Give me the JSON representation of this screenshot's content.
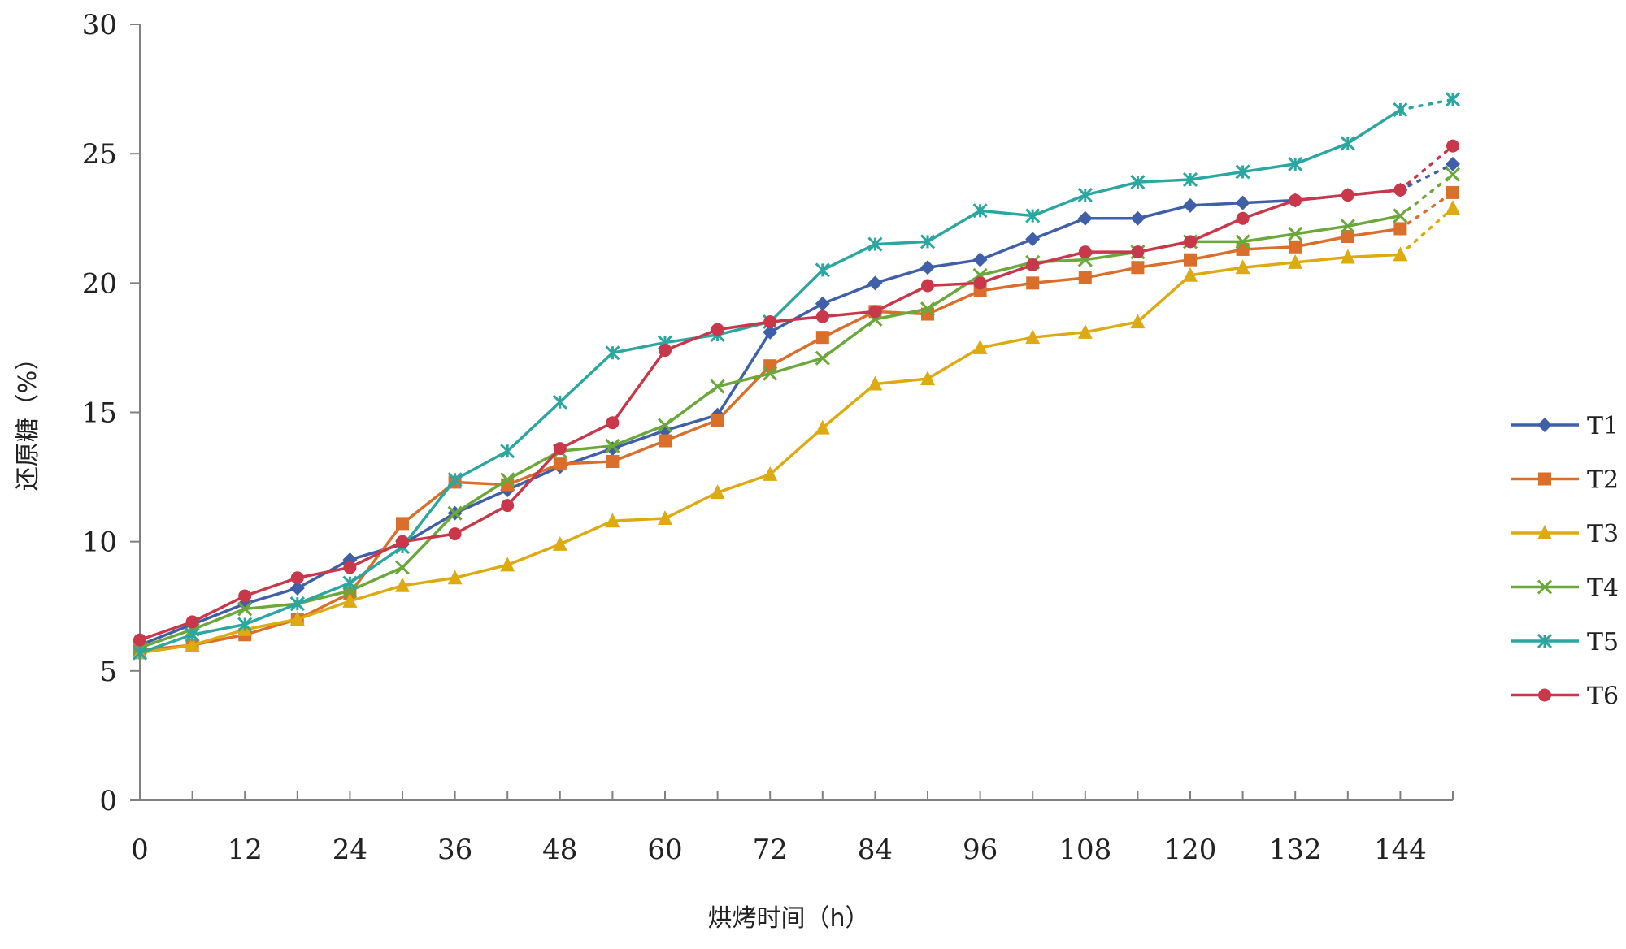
{
  "chart_data": {
    "type": "line",
    "xlabel": "烘烤时间（h）",
    "ylabel": "还原糖（%）",
    "ylim": [
      0,
      30
    ],
    "yticks": [
      0,
      5,
      10,
      15,
      20,
      25,
      30
    ],
    "xlim": [
      0,
      150
    ],
    "xticks": [
      0,
      12,
      24,
      36,
      48,
      60,
      72,
      84,
      96,
      108,
      120,
      132,
      144
    ],
    "x": [
      0,
      6,
      12,
      18,
      24,
      30,
      36,
      42,
      48,
      54,
      60,
      66,
      72,
      78,
      84,
      90,
      96,
      102,
      108,
      114,
      120,
      126,
      132,
      138,
      144
    ],
    "x_extra": 150,
    "grid": false,
    "legend_position": "right",
    "series": [
      {
        "name": "T1",
        "color": "#3F5FA8",
        "marker": "diamond",
        "values": [
          6.0,
          6.8,
          7.6,
          8.2,
          9.3,
          9.9,
          11.1,
          12.0,
          12.9,
          13.6,
          14.3,
          14.9,
          18.1,
          19.2,
          20.0,
          20.6,
          20.9,
          21.7,
          22.5,
          22.5,
          23.0,
          23.1,
          23.2,
          23.4,
          23.6
        ],
        "end_value": 24.6
      },
      {
        "name": "T2",
        "color": "#D96F2B",
        "marker": "square",
        "values": [
          5.8,
          6.0,
          6.4,
          7.0,
          8.0,
          10.7,
          12.3,
          12.2,
          13.0,
          13.1,
          13.9,
          14.7,
          16.8,
          17.9,
          18.9,
          18.8,
          19.7,
          20.0,
          20.2,
          20.6,
          20.9,
          21.3,
          21.4,
          21.8,
          22.1
        ],
        "end_value": 23.5
      },
      {
        "name": "T3",
        "color": "#DDAA11",
        "marker": "triangle",
        "values": [
          5.7,
          6.0,
          6.6,
          7.0,
          7.7,
          8.3,
          8.6,
          9.1,
          9.9,
          10.8,
          10.9,
          11.9,
          12.6,
          14.4,
          16.1,
          16.3,
          17.5,
          17.9,
          18.1,
          18.5,
          20.3,
          20.6,
          20.8,
          21.0,
          21.1
        ],
        "end_value": 22.9
      },
      {
        "name": "T4",
        "color": "#6AA83A",
        "marker": "x",
        "values": [
          5.9,
          6.6,
          7.4,
          7.6,
          8.1,
          9.0,
          11.1,
          12.4,
          13.5,
          13.7,
          14.5,
          16.0,
          16.5,
          17.1,
          18.6,
          19.0,
          20.3,
          20.8,
          20.9,
          21.2,
          21.6,
          21.6,
          21.9,
          22.2,
          22.6
        ],
        "end_value": 24.2
      },
      {
        "name": "T5",
        "color": "#2BA6A0",
        "marker": "star",
        "values": [
          5.7,
          6.4,
          6.8,
          7.6,
          8.4,
          9.8,
          12.4,
          13.5,
          15.4,
          17.3,
          17.7,
          18.0,
          18.5,
          20.5,
          21.5,
          21.6,
          22.8,
          22.6,
          23.4,
          23.9,
          24.0,
          24.3,
          24.6,
          25.4,
          26.7
        ],
        "end_value": 27.1
      },
      {
        "name": "T6",
        "color": "#C8374A",
        "marker": "circle",
        "values": [
          6.2,
          6.9,
          7.9,
          8.6,
          9.0,
          10.0,
          10.3,
          11.4,
          13.6,
          14.6,
          17.4,
          18.2,
          18.5,
          18.7,
          18.9,
          19.9,
          20.0,
          20.7,
          21.2,
          21.2,
          21.6,
          22.5,
          23.2,
          23.4,
          23.6
        ],
        "end_value": 25.3
      }
    ]
  }
}
